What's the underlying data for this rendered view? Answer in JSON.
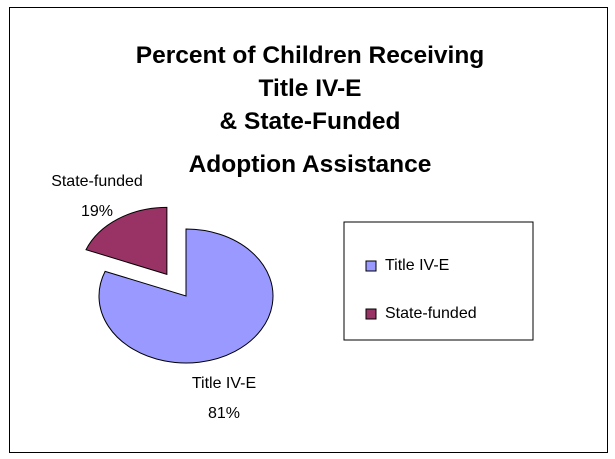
{
  "chart_data": {
    "type": "pie",
    "title_lines": [
      "Percent of Children Receiving",
      "Title IV-E",
      "& State-Funded",
      "Adoption Assistance"
    ],
    "slices": [
      {
        "name": "Title IV-E",
        "value": 81,
        "label": "81%",
        "color": "#9999ff",
        "exploded": false
      },
      {
        "name": "State-funded",
        "value": 19,
        "label": "19%",
        "color": "#993366",
        "exploded": true
      }
    ],
    "legend": {
      "placement": "right",
      "entries": [
        "Title IV-E",
        "State-funded"
      ]
    }
  }
}
